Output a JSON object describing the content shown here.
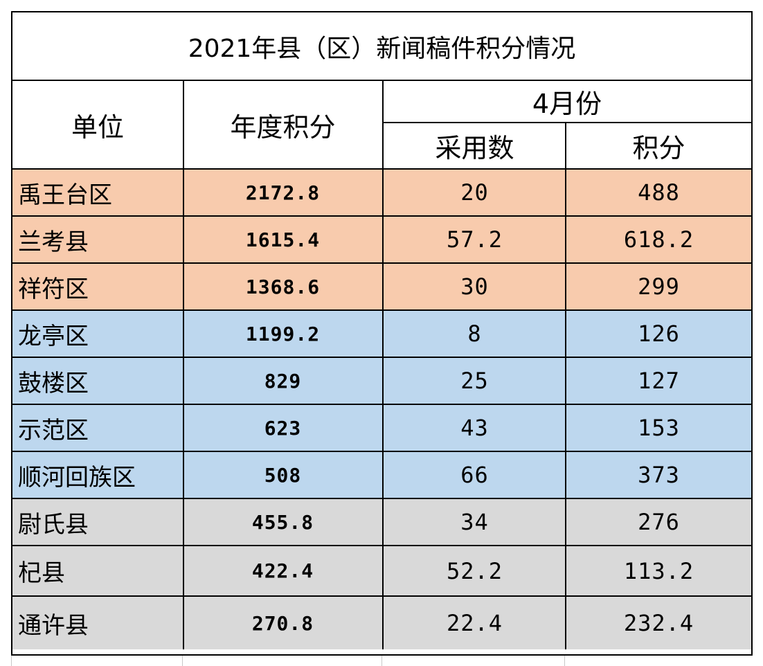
{
  "title": "2021年县（区）新闻稿件积分情况",
  "headers": {
    "unit": "单位",
    "annual_score": "年度积分",
    "month": "4月份",
    "adopted": "采用数",
    "score": "积分"
  },
  "rows": [
    {
      "unit": "禹王台区",
      "annual": "2172.8",
      "adopted": "20",
      "score": "488",
      "group": "orange"
    },
    {
      "unit": "兰考县",
      "annual": "1615.4",
      "adopted": "57.2",
      "score": "618.2",
      "group": "orange"
    },
    {
      "unit": "祥符区",
      "annual": "1368.6",
      "adopted": "30",
      "score": "299",
      "group": "orange"
    },
    {
      "unit": "龙亭区",
      "annual": "1199.2",
      "adopted": "8",
      "score": "126",
      "group": "blue"
    },
    {
      "unit": "鼓楼区",
      "annual": "829",
      "adopted": "25",
      "score": "127",
      "group": "blue"
    },
    {
      "unit": "示范区",
      "annual": "623",
      "adopted": "43",
      "score": "153",
      "group": "blue"
    },
    {
      "unit": "顺河回族区",
      "annual": "508",
      "adopted": "66",
      "score": "373",
      "group": "blue"
    },
    {
      "unit": "尉氏县",
      "annual": "455.8",
      "adopted": "34",
      "score": "276",
      "group": "gray"
    },
    {
      "unit": "杞县",
      "annual": "422.4",
      "adopted": "52.2",
      "score": "113.2",
      "group": "gray"
    },
    {
      "unit": "通许县",
      "annual": "270.8",
      "adopted": "22.4",
      "score": "232.4",
      "group": "gray"
    }
  ],
  "colors": {
    "orange": "#f8cbad",
    "blue": "#bdd7ee",
    "gray": "#d9d9d9"
  }
}
